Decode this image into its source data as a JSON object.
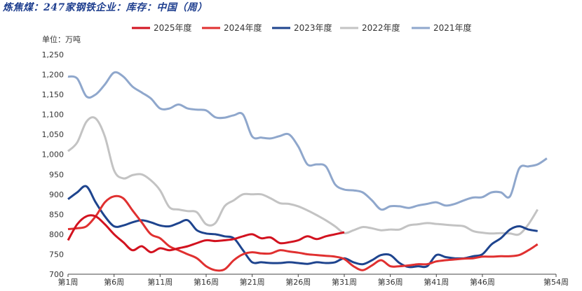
{
  "chart_data": {
    "type": "line",
    "title": "炼焦煤：247家钢铁企业：库存：中国（周）",
    "unit_label": "单位：万吨",
    "xlabel": "",
    "ylabel": "",
    "ylim": [
      700,
      1250
    ],
    "yticks": [
      700,
      750,
      800,
      850,
      900,
      950,
      1000,
      1050,
      1100,
      1150,
      1200,
      1250
    ],
    "ytick_labels": [
      "700",
      "750",
      "800",
      "850",
      "900",
      "950",
      "1,000",
      "1,050",
      "1,100",
      "1,150",
      "1,200",
      "1,250"
    ],
    "xlim": [
      1,
      54
    ],
    "xticks": [
      1,
      6,
      11,
      16,
      21,
      26,
      31,
      36,
      41,
      46,
      54
    ],
    "xtick_labels": [
      "第1周",
      "第6周",
      "第11周",
      "第16周",
      "第21周",
      "第26周",
      "第31周",
      "第36周",
      "第41周",
      "第46周",
      "第54周"
    ],
    "legend_position": "top",
    "grid": false,
    "series": [
      {
        "name": "2025年度",
        "color": "#d2121f",
        "x": [
          1,
          2,
          3,
          4,
          5,
          6,
          7,
          8,
          9,
          10,
          11,
          12,
          13,
          14,
          15,
          16,
          17,
          18,
          19,
          20,
          21,
          22,
          23,
          24,
          25,
          26,
          27,
          28,
          29,
          30,
          31
        ],
        "values": [
          785,
          825,
          845,
          845,
          825,
          800,
          780,
          760,
          770,
          755,
          765,
          760,
          765,
          770,
          778,
          785,
          783,
          785,
          788,
          795,
          800,
          790,
          792,
          778,
          780,
          785,
          795,
          788,
          795,
          800,
          805
        ]
      },
      {
        "name": "2024年度",
        "color": "#e03030",
        "x": [
          1,
          2,
          3,
          4,
          5,
          6,
          7,
          8,
          9,
          10,
          11,
          12,
          13,
          14,
          15,
          16,
          17,
          18,
          19,
          20,
          21,
          22,
          23,
          24,
          25,
          26,
          27,
          28,
          29,
          30,
          31,
          32,
          33,
          34,
          35,
          36,
          37,
          38,
          39,
          40,
          41,
          42,
          43,
          44,
          45,
          46,
          47,
          48,
          49,
          50,
          51,
          52
        ],
        "values": [
          813,
          815,
          820,
          845,
          880,
          895,
          890,
          860,
          830,
          800,
          790,
          770,
          760,
          750,
          740,
          720,
          710,
          712,
          735,
          750,
          755,
          752,
          752,
          760,
          757,
          754,
          750,
          748,
          746,
          744,
          738,
          720,
          710,
          722,
          735,
          720,
          720,
          722,
          725,
          725,
          732,
          735,
          737,
          739,
          740,
          744,
          744,
          745,
          745,
          748,
          760,
          775
        ]
      },
      {
        "name": "2023年度",
        "color": "#1e448e",
        "x": [
          1,
          2,
          3,
          4,
          5,
          6,
          7,
          8,
          9,
          10,
          11,
          12,
          13,
          14,
          15,
          16,
          17,
          18,
          19,
          20,
          21,
          22,
          23,
          24,
          25,
          26,
          27,
          28,
          29,
          30,
          31,
          32,
          33,
          34,
          35,
          36,
          37,
          38,
          39,
          40,
          41,
          42,
          43,
          44,
          45,
          46,
          47,
          48,
          49,
          50,
          51,
          52
        ],
        "values": [
          888,
          905,
          920,
          880,
          845,
          820,
          822,
          830,
          835,
          830,
          822,
          820,
          828,
          835,
          810,
          802,
          800,
          795,
          790,
          760,
          730,
          730,
          728,
          728,
          730,
          728,
          726,
          730,
          728,
          730,
          740,
          730,
          725,
          735,
          748,
          748,
          728,
          718,
          720,
          720,
          748,
          743,
          740,
          740,
          745,
          750,
          775,
          790,
          812,
          820,
          812,
          808
        ]
      },
      {
        "name": "2022年度",
        "color": "#c3c3c3",
        "x": [
          1,
          2,
          3,
          4,
          5,
          6,
          7,
          8,
          9,
          10,
          11,
          12,
          13,
          14,
          15,
          16,
          17,
          18,
          19,
          20,
          21,
          22,
          23,
          24,
          25,
          26,
          27,
          28,
          29,
          30,
          31,
          32,
          33,
          34,
          35,
          36,
          37,
          38,
          39,
          40,
          41,
          42,
          43,
          44,
          45,
          46,
          47,
          48,
          49,
          50,
          51,
          52
        ],
        "values": [
          1008,
          1030,
          1082,
          1090,
          1045,
          960,
          940,
          948,
          950,
          935,
          910,
          868,
          862,
          858,
          855,
          825,
          828,
          870,
          885,
          900,
          900,
          900,
          890,
          878,
          876,
          870,
          860,
          848,
          835,
          820,
          803,
          810,
          818,
          815,
          810,
          812,
          812,
          822,
          825,
          828,
          826,
          824,
          822,
          820,
          808,
          804,
          802,
          803,
          802,
          800,
          825,
          862
        ]
      },
      {
        "name": "2021年度",
        "color": "#8fa7cc",
        "x": [
          1,
          2,
          3,
          4,
          5,
          6,
          7,
          8,
          9,
          10,
          11,
          12,
          13,
          14,
          15,
          16,
          17,
          18,
          19,
          20,
          21,
          22,
          23,
          24,
          25,
          26,
          27,
          28,
          29,
          30,
          31,
          32,
          33,
          34,
          35,
          36,
          37,
          38,
          39,
          40,
          41,
          42,
          43,
          44,
          45,
          46,
          47,
          48,
          49,
          50,
          51,
          52,
          53
        ],
        "values": [
          1195,
          1190,
          1145,
          1150,
          1175,
          1205,
          1195,
          1170,
          1155,
          1140,
          1115,
          1115,
          1125,
          1115,
          1112,
          1110,
          1093,
          1092,
          1098,
          1100,
          1045,
          1042,
          1040,
          1046,
          1050,
          1020,
          975,
          975,
          970,
          925,
          912,
          910,
          905,
          885,
          862,
          870,
          870,
          866,
          872,
          876,
          880,
          872,
          876,
          885,
          892,
          893,
          905,
          905,
          895,
          965,
          970,
          975,
          990
        ]
      }
    ]
  }
}
